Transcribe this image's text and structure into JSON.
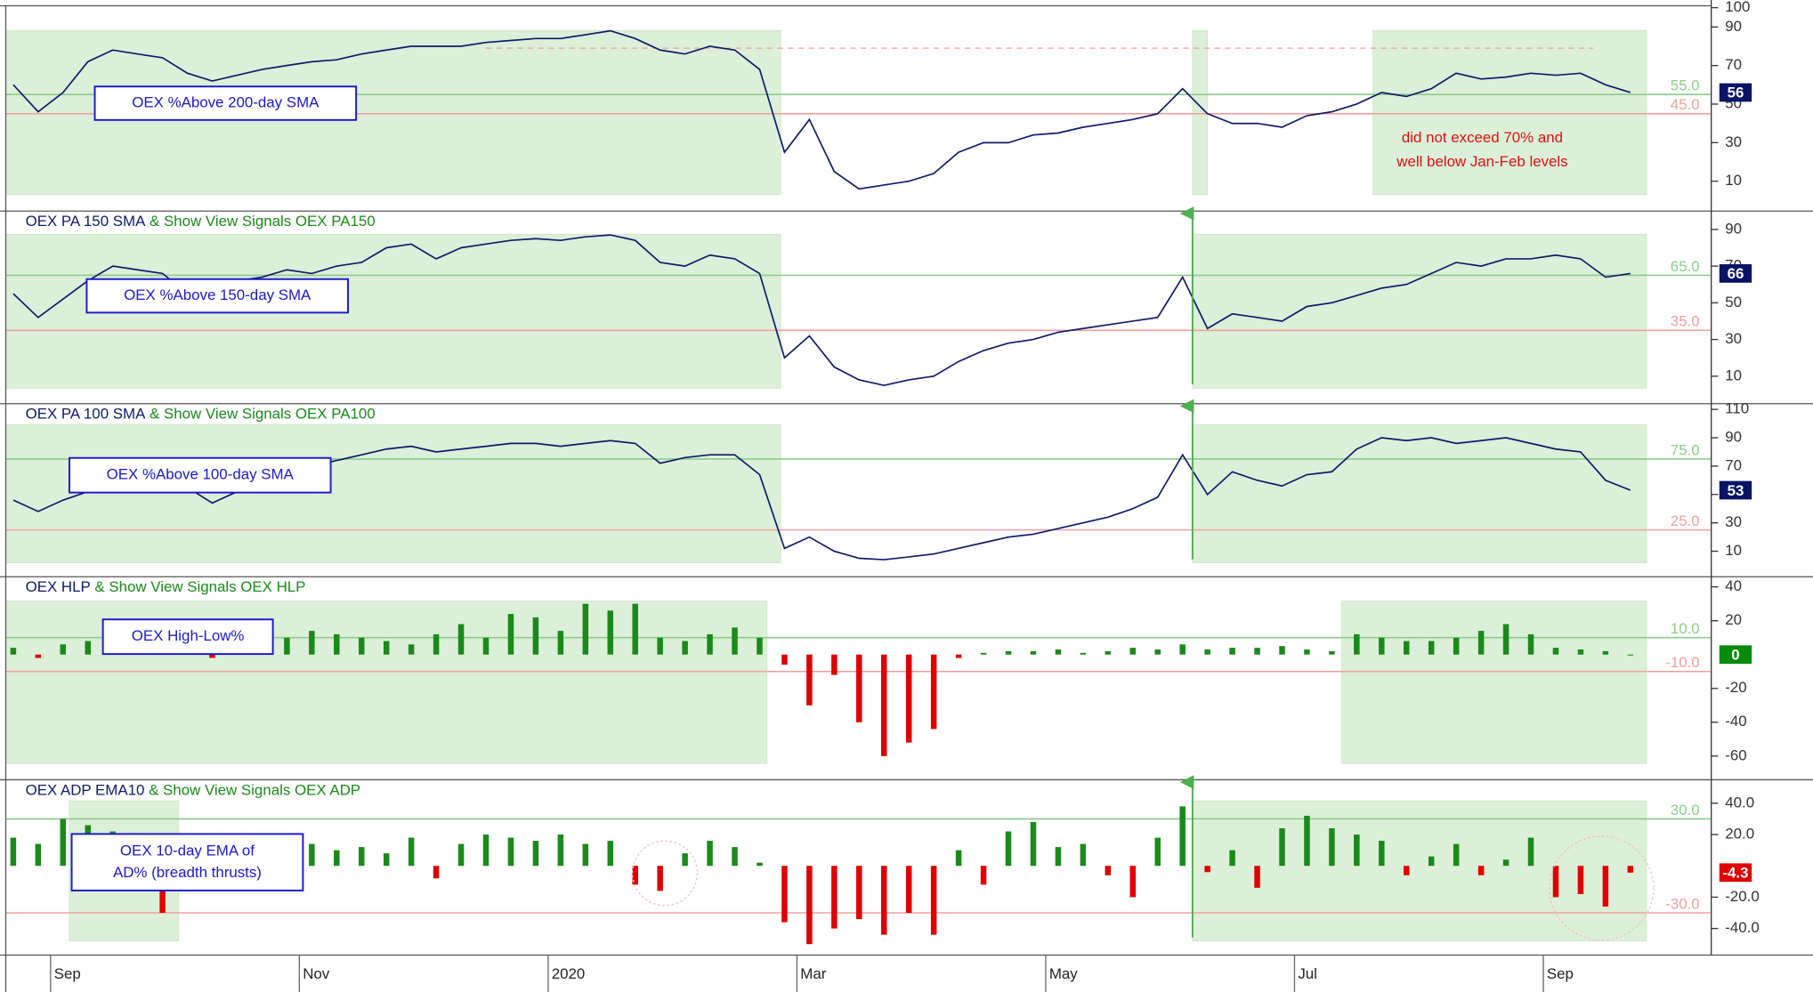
{
  "x_axis": {
    "xlim": [
      -0.36,
      13.35
    ],
    "xticks": [
      {
        "value": 0,
        "label": "Sep"
      },
      {
        "value": 2,
        "label": "Nov"
      },
      {
        "value": 4,
        "label": "2020"
      },
      {
        "value": 6,
        "label": "Mar"
      },
      {
        "value": 8,
        "label": "May"
      },
      {
        "value": 10,
        "label": "Jul"
      },
      {
        "value": 12,
        "label": "Sep"
      }
    ],
    "x": [
      -0.3,
      -0.1,
      0.1,
      0.3,
      0.5,
      0.7,
      0.9,
      1.1,
      1.3,
      1.5,
      1.7,
      1.9,
      2.1,
      2.3,
      2.5,
      2.7,
      2.9,
      3.1,
      3.3,
      3.5,
      3.7,
      3.9,
      4.1,
      4.3,
      4.5,
      4.7,
      4.9,
      5.1,
      5.3,
      5.5,
      5.7,
      5.9,
      6.1,
      6.3,
      6.5,
      6.7,
      6.9,
      7.1,
      7.3,
      7.5,
      7.7,
      7.9,
      8.1,
      8.3,
      8.5,
      8.7,
      8.9,
      9.1,
      9.3,
      9.5,
      9.7,
      9.9,
      10.1,
      10.3,
      10.5,
      10.7,
      10.9,
      11.1,
      11.3,
      11.5,
      11.7,
      11.9,
      12.1,
      12.3,
      12.5,
      12.7
    ]
  },
  "chart_data": [
    {
      "type": "line",
      "color": "#101a6a",
      "label_color": "#0a1466",
      "annotation": [
        "OEX %Above 200-day SMA"
      ],
      "note": [
        "did not exceed 70% and",
        "well below Jan-Feb levels"
      ],
      "ylim": [
        -5.5,
        101
      ],
      "yticks": [
        10,
        30,
        50,
        70,
        90,
        100
      ],
      "thresholds": [
        {
          "value": 55,
          "label": "55.0",
          "color": "#8ccc8c"
        },
        {
          "value": 45,
          "label": "45.0",
          "color": "#f0a0a0"
        }
      ],
      "dashed_line": {
        "value": 79,
        "xrange": [
          3.5,
          12.4
        ]
      },
      "signal_periods": [
        [
          -0.36,
          5.87
        ],
        [
          9.18,
          9.3
        ],
        [
          10.63,
          12.83
        ]
      ],
      "values": [
        60,
        46,
        56,
        72,
        78,
        76,
        74,
        66,
        62,
        65,
        68,
        70,
        72,
        73,
        76,
        78,
        80,
        80,
        80,
        82,
        83,
        84,
        84,
        86,
        88,
        84,
        78,
        76,
        80,
        78,
        68,
        25,
        42,
        15,
        6,
        8,
        10,
        14,
        25,
        30,
        30,
        34,
        35,
        38,
        40,
        42,
        45,
        58,
        45,
        40,
        40,
        38,
        44,
        46,
        50,
        56,
        54,
        58,
        66,
        63,
        64,
        66,
        65,
        66,
        60,
        56
      ]
    },
    {
      "type": "line",
      "color": "#101a6a",
      "label_color": "#0a1466",
      "title": "OEX PA 150 SMA",
      "title_suffix": "& Show View Signals OEX PA150",
      "annotation": [
        "OEX %Above 150-day SMA"
      ],
      "ylim": [
        -5,
        100
      ],
      "yticks": [
        10,
        30,
        50,
        70,
        90
      ],
      "thresholds": [
        {
          "value": 65,
          "label": "65.0",
          "color": "#8ccc8c"
        },
        {
          "value": 35,
          "label": "35.0",
          "color": "#f0a0a0"
        }
      ],
      "signal_periods": [
        [
          -0.36,
          5.87
        ],
        [
          9.18,
          12.83
        ]
      ],
      "signal_arrows": [
        9.18
      ],
      "values": [
        55,
        42,
        52,
        62,
        70,
        68,
        66,
        55,
        58,
        62,
        64,
        68,
        66,
        70,
        72,
        80,
        82,
        74,
        80,
        82,
        84,
        85,
        84,
        86,
        87,
        84,
        72,
        70,
        76,
        74,
        66,
        20,
        32,
        15,
        8,
        5,
        8,
        10,
        18,
        24,
        28,
        30,
        34,
        36,
        38,
        40,
        42,
        64,
        36,
        44,
        42,
        40,
        48,
        50,
        54,
        58,
        60,
        66,
        72,
        70,
        74,
        74,
        76,
        74,
        64,
        66
      ]
    },
    {
      "type": "line",
      "color": "#101a6a",
      "label_color": "#0a1466",
      "title": "OEX PA 100 SMA",
      "title_suffix": "& Show View Signals OEX PA100",
      "annotation": [
        "OEX %Above 100-day SMA"
      ],
      "ylim": [
        -8,
        114
      ],
      "yticks": [
        10,
        30,
        50,
        70,
        90,
        110
      ],
      "thresholds": [
        {
          "value": 75,
          "label": "75.0",
          "color": "#8ccc8c"
        },
        {
          "value": 25,
          "label": "25.0",
          "color": "#f0a0a0"
        }
      ],
      "signal_periods": [
        [
          -0.36,
          5.87
        ],
        [
          9.18,
          12.83
        ]
      ],
      "signal_arrows": [
        9.18
      ],
      "values": [
        46,
        38,
        46,
        52,
        58,
        62,
        58,
        55,
        44,
        52,
        60,
        64,
        70,
        74,
        78,
        82,
        84,
        80,
        82,
        84,
        86,
        86,
        84,
        86,
        88,
        86,
        72,
        76,
        78,
        78,
        64,
        12,
        20,
        10,
        5,
        4,
        6,
        8,
        12,
        16,
        20,
        22,
        26,
        30,
        34,
        40,
        48,
        78,
        50,
        66,
        60,
        56,
        64,
        66,
        82,
        90,
        88,
        90,
        86,
        88,
        90,
        86,
        82,
        80,
        60,
        53
      ]
    },
    {
      "type": "bar",
      "color": "#1a8a1a",
      "negative_color": "#e00000",
      "label_color": "#0a8a0a",
      "title": "OEX HLP",
      "title_suffix": "& Show View Signals OEX HLP",
      "annotation": [
        "OEX High-Low%"
      ],
      "ylim": [
        -74,
        46
      ],
      "yticks": [
        40,
        20,
        -20,
        -40,
        -60
      ],
      "thresholds": [
        {
          "value": 10,
          "label": "10.0",
          "color": "#8ccc8c"
        },
        {
          "value": -10,
          "label": "-10.0",
          "color": "#f0a0a0"
        }
      ],
      "signal_periods": [
        [
          -0.36,
          5.76
        ],
        [
          10.38,
          12.83
        ]
      ],
      "values": [
        4,
        -2,
        6,
        8,
        14,
        6,
        4,
        3,
        -2,
        5,
        8,
        10,
        14,
        12,
        10,
        8,
        6,
        12,
        18,
        10,
        24,
        22,
        14,
        30,
        26,
        30,
        10,
        8,
        12,
        16,
        10,
        -6,
        -30,
        -12,
        -40,
        -60,
        -52,
        -44,
        -2,
        1,
        2,
        2,
        3,
        1,
        2,
        4,
        3,
        6,
        3,
        4,
        4,
        5,
        3,
        2,
        12,
        10,
        8,
        8,
        10,
        14,
        18,
        12,
        4,
        3,
        2,
        0
      ]
    },
    {
      "type": "bar",
      "color": "#1a8a1a",
      "negative_color": "#e00000",
      "label_color": "#e00000",
      "title": "OEX ADP EMA10",
      "title_suffix": "& Show View Signals OEX ADP",
      "annotation": [
        "OEX 10-day EMA of",
        "AD% (breadth thrusts)"
      ],
      "ylim": [
        -57,
        55
      ],
      "yticks": [
        {
          "value": 40,
          "label": "40.0"
        },
        {
          "value": 20,
          "label": "20.0"
        },
        {
          "value": -20,
          "label": "-20.0"
        },
        {
          "value": -40,
          "label": "-40.0"
        }
      ],
      "thresholds": [
        {
          "value": 30,
          "label": "30.0",
          "color": "#8ccc8c"
        },
        {
          "value": -30,
          "label": "-30.0",
          "color": "#f0a0a0"
        }
      ],
      "signal_periods": [
        [
          0.15,
          1.03
        ],
        [
          9.18,
          12.83
        ]
      ],
      "signal_arrows": [
        9.18
      ],
      "values": [
        18,
        14,
        30,
        26,
        22,
        20,
        -30,
        -10,
        14,
        18,
        20,
        12,
        14,
        10,
        12,
        8,
        18,
        -8,
        14,
        20,
        18,
        16,
        20,
        14,
        16,
        -12,
        -16,
        8,
        16,
        12,
        2,
        -36,
        -50,
        -40,
        -34,
        -44,
        -30,
        -44,
        10,
        -12,
        22,
        28,
        12,
        14,
        -6,
        -20,
        18,
        38,
        -4,
        10,
        -14,
        24,
        32,
        24,
        20,
        16,
        -6,
        6,
        14,
        -6,
        4,
        18,
        -20,
        -18,
        -26,
        -4.3
      ]
    }
  ]
}
